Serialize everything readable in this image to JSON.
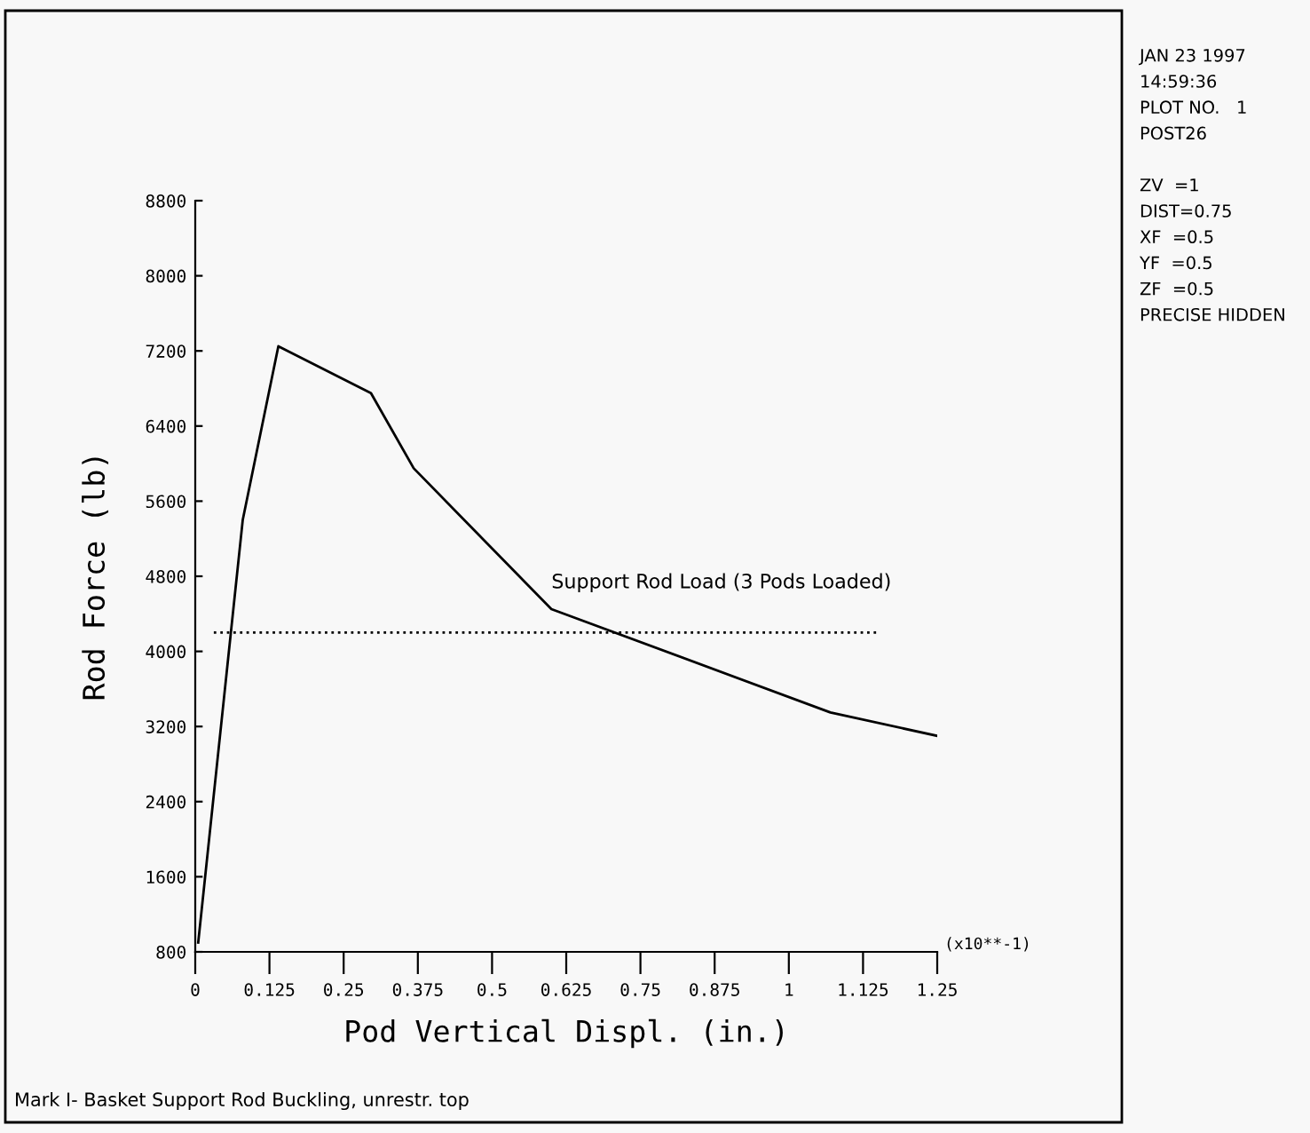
{
  "chart_data": {
    "type": "line",
    "xlabel": "Pod Vertical Displ. (in.)",
    "ylabel": "Rod Force (lb)",
    "x": [
      0.005,
      0.08,
      0.14,
      0.296,
      0.368,
      0.6,
      1.07,
      1.25
    ],
    "series": [
      {
        "color": "#000000",
        "values": [
          900,
          5400,
          7250,
          6750,
          5950,
          4450,
          3350,
          3100
        ]
      }
    ],
    "xlim": [
      0,
      1.25
    ],
    "xticks": [
      0,
      0.125,
      0.25,
      0.375,
      0.5,
      0.625,
      0.75,
      0.875,
      1,
      1.125,
      1.25
    ],
    "ylim": [
      800,
      8800
    ],
    "yticks": [
      800,
      1600,
      2400,
      3200,
      4000,
      4800,
      5600,
      6400,
      7200,
      8000,
      8800
    ],
    "ref_lines": [
      {
        "axis": "y",
        "value": 4200,
        "label": "Support Rod Load (3 Pods Loaded)",
        "color": "#000000",
        "line_style": "dotted"
      }
    ],
    "annotations": [
      "Mark I- Basket Support Rod Buckling, unrestr. top",
      "(x10**-1)",
      "JAN 23 1997",
      "14:59:36",
      "PLOT NO.   1",
      "POST26",
      "ZV  =1",
      "DIST=0.75",
      "XF  =0.5",
      "YF  =0.5",
      "ZF  =0.5",
      "PRECISE HIDDEN"
    ],
    "grid": false,
    "legend": false,
    "marker": "none",
    "line_style": "solid"
  }
}
